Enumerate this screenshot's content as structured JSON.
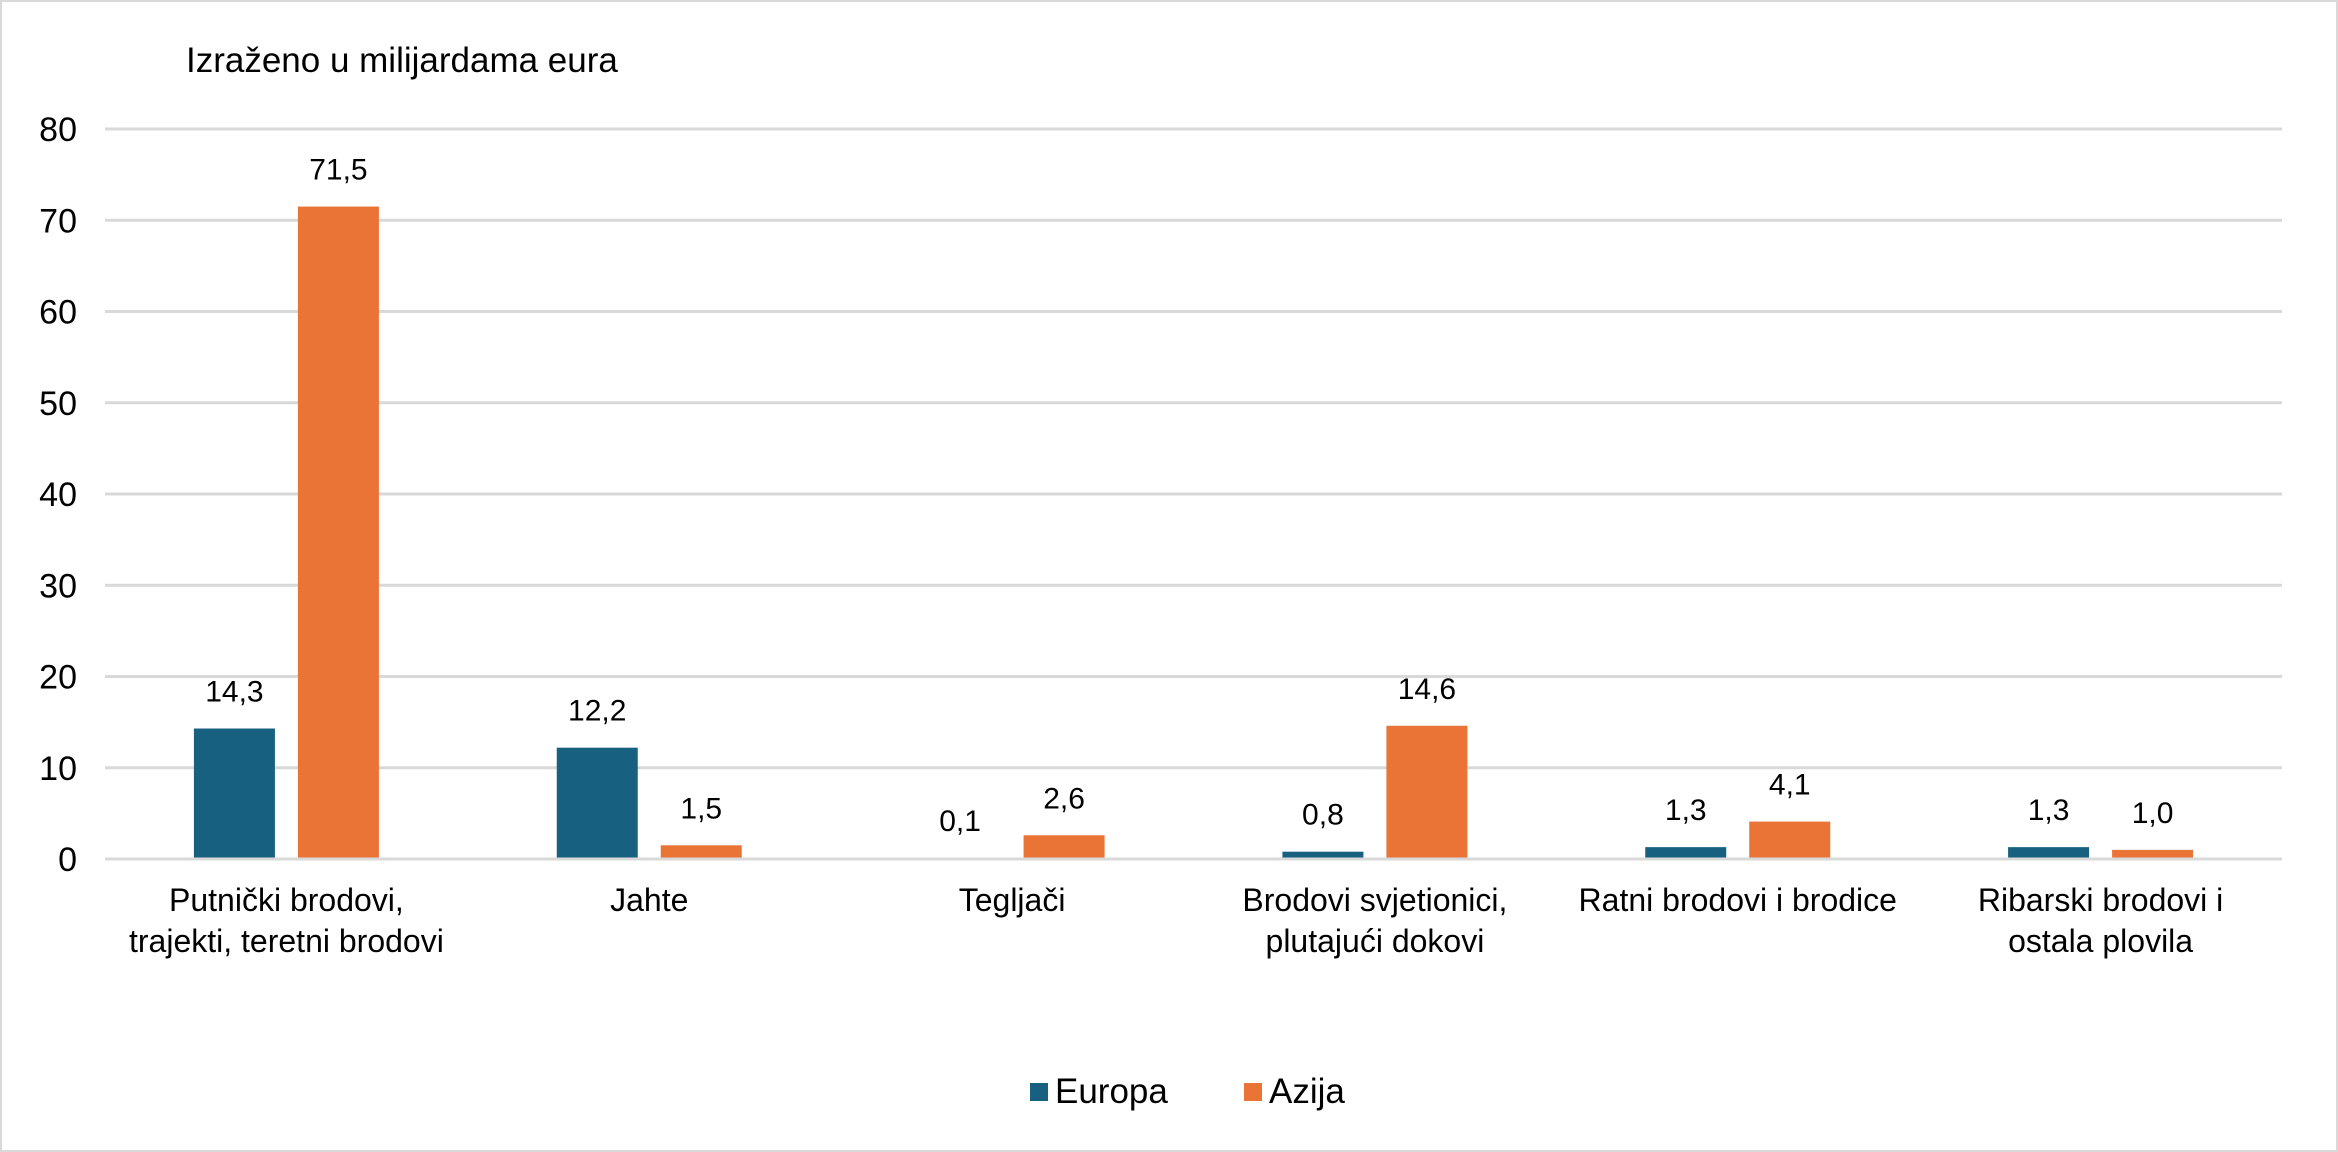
{
  "chart_data": {
    "type": "bar",
    "unit_label": "Izraženo u milijardama eura",
    "categories": [
      [
        "Putnički brodovi,",
        "trajekti, teretni brodovi"
      ],
      [
        "Jahte"
      ],
      [
        "Tegljači"
      ],
      [
        "Brodovi svjetionici,",
        "plutajući dokovi"
      ],
      [
        "Ratni brodovi i brodice"
      ],
      [
        "Ribarski brodovi i",
        "ostala plovila"
      ]
    ],
    "series": [
      {
        "name": "Europa",
        "color": "#17607f",
        "values": [
          14.3,
          12.2,
          0.1,
          0.8,
          1.3,
          1.3
        ],
        "labels": [
          "14,3",
          "12,2",
          "0,1",
          "0,8",
          "1,3",
          "1,3"
        ]
      },
      {
        "name": "Azija",
        "color": "#ea7336",
        "values": [
          71.5,
          1.5,
          2.6,
          14.6,
          4.1,
          1.0
        ],
        "labels": [
          "71,5",
          "1,5",
          "2,6",
          "14,6",
          "4,1",
          "1,0"
        ]
      }
    ],
    "ylim": [
      0,
      80
    ],
    "yticks": [
      0,
      10,
      20,
      30,
      40,
      50,
      60,
      70,
      80
    ],
    "grid": true,
    "legend_position": "bottom"
  }
}
